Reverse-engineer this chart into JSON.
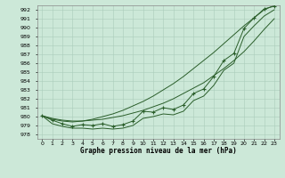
{
  "title": "Graphe pression niveau de la mer (hPa)",
  "bg_color": "#cce8d8",
  "grid_color": "#aaccbb",
  "line_color": "#2a5e2a",
  "xlim": [
    -0.5,
    23.5
  ],
  "ylim": [
    977.5,
    992.5
  ],
  "yticks": [
    978,
    979,
    980,
    981,
    982,
    983,
    984,
    985,
    986,
    987,
    988,
    989,
    990,
    991,
    992
  ],
  "xtick_labels": [
    "0",
    "1",
    "2",
    "3",
    "4",
    "5",
    "6",
    "7",
    "8",
    "9",
    "10",
    "11",
    "12",
    "13",
    "14",
    "15",
    "16",
    "17",
    "18",
    "19",
    "20",
    "21",
    "22",
    "23"
  ],
  "hours": [
    0,
    1,
    2,
    3,
    4,
    5,
    6,
    7,
    8,
    9,
    10,
    11,
    12,
    13,
    14,
    15,
    16,
    17,
    18,
    19,
    20,
    21,
    22,
    23
  ],
  "pressure_main": [
    980.1,
    979.6,
    979.2,
    978.9,
    979.1,
    979.0,
    979.2,
    978.9,
    979.1,
    979.5,
    980.6,
    980.5,
    981.0,
    980.8,
    981.3,
    982.6,
    983.1,
    984.5,
    986.3,
    987.1,
    989.9,
    991.1,
    992.1,
    992.4
  ],
  "pressure_low": [
    980.1,
    979.2,
    978.9,
    978.7,
    978.7,
    978.6,
    978.7,
    978.6,
    978.7,
    979.0,
    979.8,
    980.0,
    980.3,
    980.2,
    980.6,
    981.8,
    982.3,
    983.5,
    985.2,
    986.0,
    989.0,
    990.2,
    991.3,
    992.0
  ],
  "pressure_trend1": [
    980.1,
    979.7,
    979.5,
    979.4,
    979.5,
    979.7,
    980.0,
    980.3,
    980.7,
    981.2,
    981.7,
    982.3,
    983.0,
    983.7,
    984.5,
    985.4,
    986.3,
    987.2,
    988.2,
    989.2,
    990.2,
    991.1,
    992.0,
    992.5
  ],
  "pressure_trend2": [
    980.1,
    979.8,
    979.6,
    979.5,
    979.5,
    979.6,
    979.7,
    979.9,
    980.1,
    980.4,
    980.7,
    981.1,
    981.5,
    982.0,
    982.6,
    983.2,
    983.8,
    984.6,
    985.4,
    986.3,
    987.3,
    988.5,
    989.8,
    991.0
  ]
}
